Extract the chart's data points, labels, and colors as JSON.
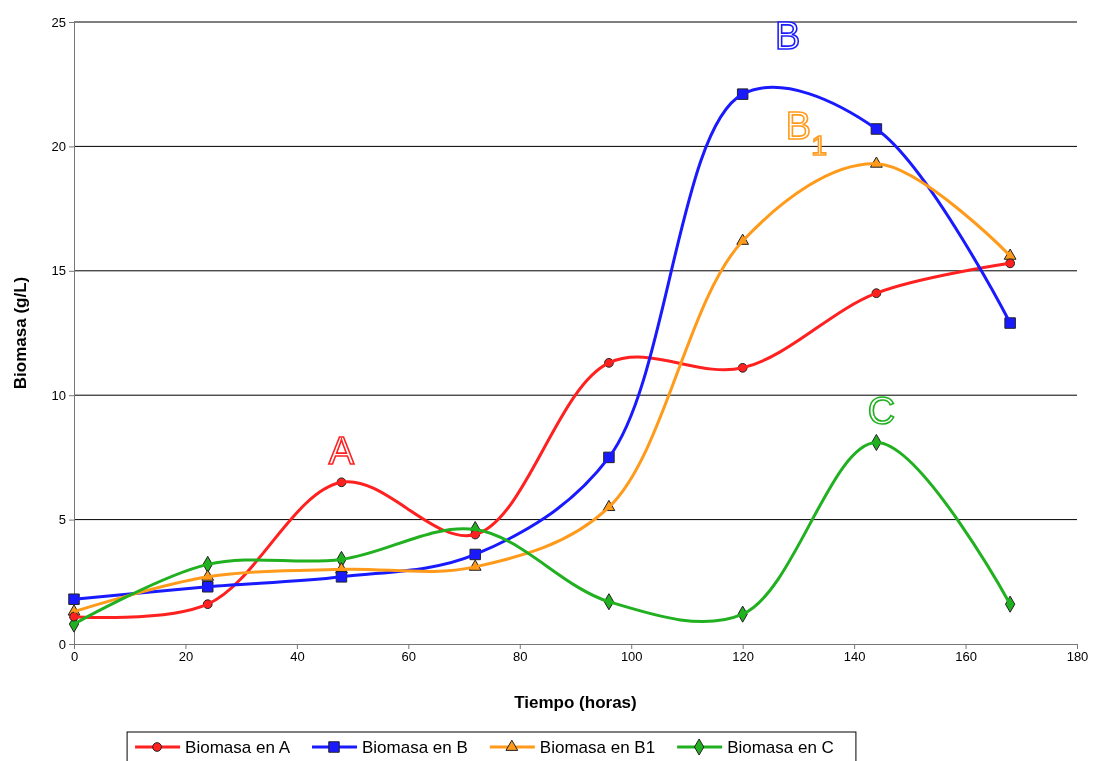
{
  "chart_data": {
    "type": "line",
    "xlabel": "Tiempo (horas)",
    "ylabel": "Biomasa (g/L)",
    "x": [
      0,
      24,
      48,
      72,
      96,
      120,
      144,
      168
    ],
    "xlim": [
      0,
      180
    ],
    "xticks": [
      0,
      20,
      40,
      60,
      80,
      100,
      120,
      140,
      160,
      180
    ],
    "ylim": [
      0,
      25
    ],
    "yticks": [
      0,
      5,
      10,
      15,
      20,
      25
    ],
    "grid": "y",
    "legend": "bottom",
    "line_style": "solid",
    "series": [
      {
        "name": "Biomasa en A",
        "color": "#ff2020",
        "marker": "circle",
        "values": [
          1.1,
          1.6,
          6.5,
          4.4,
          11.3,
          11.1,
          14.1,
          15.3
        ]
      },
      {
        "name": "Biomasa en B",
        "color": "#1a1aff",
        "marker": "square",
        "values": [
          1.8,
          2.3,
          2.7,
          3.6,
          7.5,
          22.1,
          20.7,
          12.9
        ]
      },
      {
        "name": "Biomasa en B1",
        "color": "#ff9a1a",
        "marker": "triangle",
        "values": [
          1.3,
          2.7,
          3.0,
          3.1,
          5.5,
          16.2,
          19.3,
          15.6
        ]
      },
      {
        "name": "Biomasa en C",
        "color": "#20b020",
        "marker": "diamond",
        "values": [
          0.8,
          3.2,
          3.4,
          4.6,
          1.7,
          1.2,
          8.1,
          1.6
        ]
      }
    ],
    "annotations": [
      "A",
      "B",
      "B$_{1}$",
      "C"
    ]
  }
}
